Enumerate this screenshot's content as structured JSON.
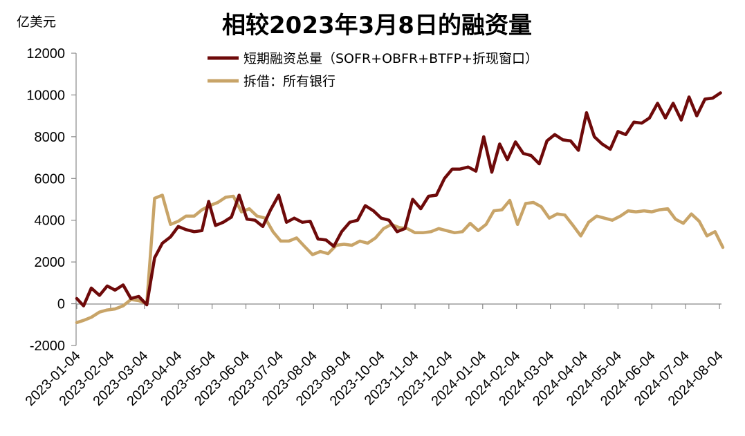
{
  "chart_data": {
    "type": "line",
    "title": "相较2023年3月8日的融资量",
    "ylabel": "亿美元",
    "ylim": [
      -2000,
      12000
    ],
    "yticks": [
      "12000",
      "10000",
      "8000",
      "6000",
      "4000",
      "2000",
      "0",
      "-2000"
    ],
    "xtick_labels": [
      "2023-01-04",
      "2023-02-04",
      "2023-03-04",
      "2023-04-04",
      "2023-05-04",
      "2023-06-04",
      "2023-07-04",
      "2023-08-04",
      "2023-09-04",
      "2023-10-04",
      "2023-11-04",
      "2023-12-04",
      "2024-01-04",
      "2024-02-04",
      "2024-03-04",
      "2024-04-04",
      "2024-05-04",
      "2024-06-04",
      "2024-07-04",
      "2024-08-04"
    ],
    "grid": false,
    "legend": "top-center",
    "series": [
      {
        "name": "短期融资总量（SOFR+OBFR+BTFP+折现窗口）",
        "color": "#6e0a0a",
        "points": [
          [
            0.0,
            250
          ],
          [
            0.2,
            -100
          ],
          [
            0.43,
            750
          ],
          [
            0.67,
            400
          ],
          [
            0.9,
            850
          ],
          [
            1.13,
            650
          ],
          [
            1.37,
            900
          ],
          [
            1.6,
            250
          ],
          [
            1.83,
            350
          ],
          [
            2.07,
            -50
          ],
          [
            2.3,
            2200
          ],
          [
            2.53,
            2900
          ],
          [
            2.77,
            3200
          ],
          [
            3.0,
            3700
          ],
          [
            3.23,
            3550
          ],
          [
            3.47,
            3450
          ],
          [
            3.7,
            3500
          ],
          [
            3.9,
            4900
          ],
          [
            4.1,
            3750
          ],
          [
            4.33,
            3900
          ],
          [
            4.57,
            4150
          ],
          [
            4.8,
            5200
          ],
          [
            5.03,
            4050
          ],
          [
            5.27,
            4000
          ],
          [
            5.5,
            3700
          ],
          [
            5.73,
            4500
          ],
          [
            5.97,
            5200
          ],
          [
            6.2,
            3900
          ],
          [
            6.43,
            4100
          ],
          [
            6.67,
            3900
          ],
          [
            6.9,
            3950
          ],
          [
            7.13,
            3100
          ],
          [
            7.37,
            3050
          ],
          [
            7.6,
            2750
          ],
          [
            7.83,
            3450
          ],
          [
            8.07,
            3900
          ],
          [
            8.3,
            4000
          ],
          [
            8.53,
            4700
          ],
          [
            8.77,
            4450
          ],
          [
            9.0,
            4100
          ],
          [
            9.23,
            4000
          ],
          [
            9.47,
            3450
          ],
          [
            9.7,
            3600
          ],
          [
            9.93,
            5000
          ],
          [
            10.17,
            4550
          ],
          [
            10.4,
            5150
          ],
          [
            10.63,
            5200
          ],
          [
            10.87,
            6000
          ],
          [
            11.1,
            6450
          ],
          [
            11.33,
            6450
          ],
          [
            11.57,
            6550
          ],
          [
            11.8,
            6350
          ],
          [
            12.03,
            8000
          ],
          [
            12.27,
            6300
          ],
          [
            12.5,
            7650
          ],
          [
            12.73,
            6900
          ],
          [
            12.97,
            7750
          ],
          [
            13.2,
            7200
          ],
          [
            13.43,
            7100
          ],
          [
            13.67,
            6700
          ],
          [
            13.9,
            7800
          ],
          [
            14.13,
            8100
          ],
          [
            14.37,
            7850
          ],
          [
            14.6,
            7800
          ],
          [
            14.83,
            7350
          ],
          [
            15.07,
            9150
          ],
          [
            15.3,
            8000
          ],
          [
            15.53,
            7650
          ],
          [
            15.77,
            7400
          ],
          [
            16.0,
            8250
          ],
          [
            16.23,
            8100
          ],
          [
            16.47,
            8700
          ],
          [
            16.7,
            8650
          ],
          [
            16.93,
            8900
          ],
          [
            17.17,
            9600
          ],
          [
            17.4,
            8900
          ],
          [
            17.63,
            9600
          ],
          [
            17.87,
            8800
          ],
          [
            18.1,
            9900
          ],
          [
            18.33,
            9000
          ],
          [
            18.57,
            9800
          ],
          [
            18.8,
            9850
          ],
          [
            19.03,
            10100
          ]
        ]
      },
      {
        "name": "拆借：所有银行",
        "color": "#c8a468",
        "points": [
          [
            0.0,
            -900
          ],
          [
            0.2,
            -800
          ],
          [
            0.43,
            -650
          ],
          [
            0.67,
            -400
          ],
          [
            0.9,
            -300
          ],
          [
            1.13,
            -250
          ],
          [
            1.37,
            -100
          ],
          [
            1.6,
            200
          ],
          [
            1.83,
            150
          ],
          [
            2.07,
            0
          ],
          [
            2.3,
            5050
          ],
          [
            2.53,
            5200
          ],
          [
            2.77,
            3800
          ],
          [
            3.0,
            3950
          ],
          [
            3.23,
            4200
          ],
          [
            3.47,
            4200
          ],
          [
            3.7,
            4500
          ],
          [
            3.93,
            4700
          ],
          [
            4.17,
            4850
          ],
          [
            4.4,
            5100
          ],
          [
            4.63,
            5150
          ],
          [
            4.87,
            4400
          ],
          [
            5.1,
            4550
          ],
          [
            5.33,
            4200
          ],
          [
            5.57,
            4100
          ],
          [
            5.8,
            3450
          ],
          [
            6.03,
            3000
          ],
          [
            6.27,
            3000
          ],
          [
            6.5,
            3150
          ],
          [
            6.73,
            2750
          ],
          [
            6.97,
            2350
          ],
          [
            7.2,
            2500
          ],
          [
            7.43,
            2400
          ],
          [
            7.67,
            2800
          ],
          [
            7.9,
            2850
          ],
          [
            8.13,
            2800
          ],
          [
            8.37,
            3000
          ],
          [
            8.6,
            2900
          ],
          [
            8.83,
            3150
          ],
          [
            9.07,
            3600
          ],
          [
            9.3,
            3800
          ],
          [
            9.53,
            3650
          ],
          [
            9.77,
            3600
          ],
          [
            10.0,
            3400
          ],
          [
            10.23,
            3400
          ],
          [
            10.47,
            3450
          ],
          [
            10.7,
            3600
          ],
          [
            10.93,
            3500
          ],
          [
            11.17,
            3400
          ],
          [
            11.4,
            3450
          ],
          [
            11.63,
            3850
          ],
          [
            11.87,
            3500
          ],
          [
            12.1,
            3800
          ],
          [
            12.33,
            4450
          ],
          [
            12.57,
            4500
          ],
          [
            12.8,
            4950
          ],
          [
            13.03,
            3800
          ],
          [
            13.27,
            4800
          ],
          [
            13.5,
            4850
          ],
          [
            13.73,
            4650
          ],
          [
            13.97,
            4100
          ],
          [
            14.2,
            4300
          ],
          [
            14.43,
            4250
          ],
          [
            14.67,
            3750
          ],
          [
            14.9,
            3250
          ],
          [
            15.13,
            3900
          ],
          [
            15.37,
            4200
          ],
          [
            15.6,
            4100
          ],
          [
            15.83,
            4000
          ],
          [
            16.07,
            4200
          ],
          [
            16.3,
            4450
          ],
          [
            16.53,
            4400
          ],
          [
            16.77,
            4450
          ],
          [
            17.0,
            4400
          ],
          [
            17.23,
            4500
          ],
          [
            17.47,
            4550
          ],
          [
            17.7,
            4050
          ],
          [
            17.93,
            3850
          ],
          [
            18.17,
            4300
          ],
          [
            18.4,
            3950
          ],
          [
            18.63,
            3250
          ],
          [
            18.87,
            3450
          ],
          [
            19.1,
            2700
          ]
        ]
      }
    ]
  }
}
